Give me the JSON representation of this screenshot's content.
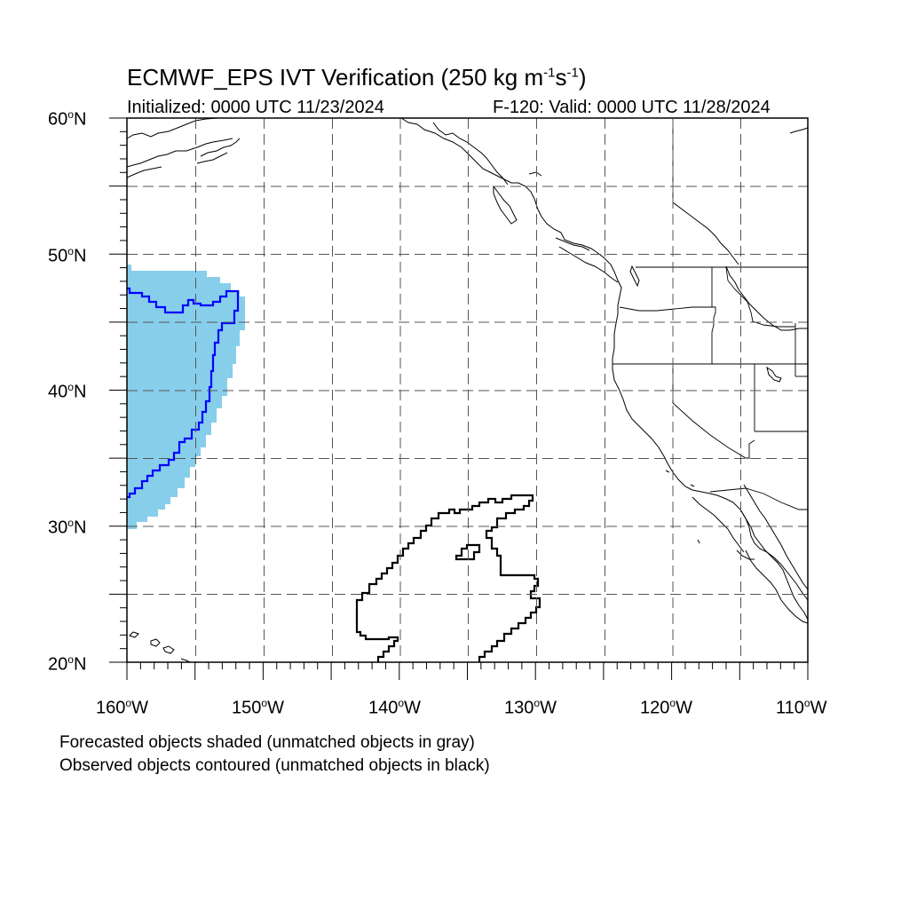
{
  "title": {
    "main": "ECMWF_EPS IVT Verification (250 kg m",
    "exp1": "-1",
    "mid": "s",
    "exp2": "-1",
    "end": ")"
  },
  "subtitle": {
    "initialized": "Initialized: 0000 UTC 11/23/2024",
    "valid": "F-120: Valid: 0000 UTC 11/28/2024"
  },
  "map": {
    "lon_range": [
      -160,
      -110
    ],
    "lat_range": [
      20,
      60
    ],
    "grid": "dashed, every 5 degrees",
    "lat_labels": [
      {
        "deg": "60",
        "hem": "N"
      },
      {
        "deg": "50",
        "hem": "N"
      },
      {
        "deg": "40",
        "hem": "N"
      },
      {
        "deg": "30",
        "hem": "N"
      },
      {
        "deg": "20",
        "hem": "N"
      }
    ],
    "lon_labels": [
      {
        "deg": "160",
        "hem": "W"
      },
      {
        "deg": "150",
        "hem": "W"
      },
      {
        "deg": "140",
        "hem": "W"
      },
      {
        "deg": "130",
        "hem": "W"
      },
      {
        "deg": "120",
        "hem": "W"
      },
      {
        "deg": "110",
        "hem": "W"
      }
    ],
    "degree_symbol": "o",
    "colors": {
      "forecast_fill": "#87ceeb",
      "matched_observed_contour": "#0000ff",
      "unmatched_observed_contour": "#000000",
      "coastline": "#000000",
      "grid": "#555555"
    }
  },
  "notes": {
    "line1": "Forecasted objects shaded (unmatched objects in gray)",
    "line2": "Observed objects contoured (unmatched objects in black)"
  }
}
